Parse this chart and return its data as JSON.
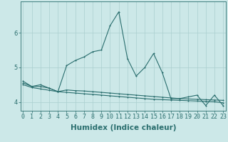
{
  "xlabel": "Humidex (Indice chaleur)",
  "background_color": "#cce8e8",
  "line_color": "#2a6e6e",
  "grid_color": "#aacfcf",
  "x_values": [
    0,
    1,
    2,
    3,
    4,
    5,
    6,
    7,
    8,
    9,
    10,
    11,
    12,
    13,
    14,
    15,
    16,
    17,
    18,
    19,
    20,
    21,
    22,
    23
  ],
  "series1": [
    4.6,
    4.45,
    4.5,
    4.4,
    4.3,
    5.05,
    5.2,
    5.3,
    5.45,
    5.5,
    6.2,
    6.6,
    5.25,
    4.75,
    5.0,
    5.4,
    4.85,
    4.1,
    4.1,
    4.15,
    4.2,
    3.9,
    4.2,
    3.9
  ],
  "series2": [
    4.55,
    4.45,
    4.45,
    4.4,
    4.3,
    4.35,
    4.33,
    4.32,
    4.3,
    4.28,
    4.26,
    4.24,
    4.22,
    4.2,
    4.18,
    4.16,
    4.14,
    4.12,
    4.1,
    4.09,
    4.08,
    4.07,
    4.06,
    4.05
  ],
  "series3": [
    4.5,
    4.42,
    4.38,
    4.34,
    4.3,
    4.28,
    4.26,
    4.24,
    4.22,
    4.2,
    4.18,
    4.16,
    4.14,
    4.12,
    4.1,
    4.08,
    4.07,
    4.06,
    4.05,
    4.04,
    4.03,
    4.02,
    4.01,
    3.98
  ],
  "ylim": [
    3.75,
    6.9
  ],
  "yticks": [
    4,
    5,
    6
  ],
  "xticks": [
    0,
    1,
    2,
    3,
    4,
    5,
    6,
    7,
    8,
    9,
    10,
    11,
    12,
    13,
    14,
    15,
    16,
    17,
    18,
    19,
    20,
    21,
    22,
    23
  ],
  "tick_fontsize": 6,
  "label_fontsize": 7.5
}
